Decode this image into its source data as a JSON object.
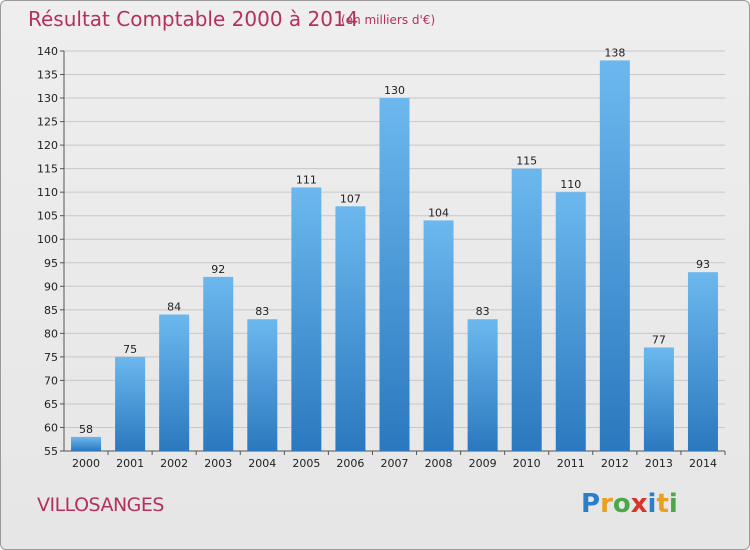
{
  "header": {
    "title": "Résultat Comptable 2000 à 2014",
    "subtitle": "(en milliers d'€)"
  },
  "footer": {
    "commune": "VILLOSANGES",
    "brand_letters": [
      {
        "ch": "P",
        "color": "#2a7fc9"
      },
      {
        "ch": "r",
        "color": "#e8a020"
      },
      {
        "ch": "o",
        "color": "#4aa84a"
      },
      {
        "ch": "x",
        "color": "#d8342c"
      },
      {
        "ch": "i",
        "color": "#2a7fc9"
      },
      {
        "ch": "t",
        "color": "#e8a020"
      },
      {
        "ch": "i",
        "color": "#4aa84a"
      }
    ]
  },
  "colors": {
    "accent": "#b5305e",
    "bar_top": "#6cb8ee",
    "bar_bottom": "#2b78bf"
  },
  "chart_data": {
    "type": "bar",
    "title": "Résultat Comptable 2000 à 2014",
    "subtitle": "(en milliers d'€)",
    "categories": [
      "2000",
      "2001",
      "2002",
      "2003",
      "2004",
      "2005",
      "2006",
      "2007",
      "2008",
      "2009",
      "2010",
      "2011",
      "2012",
      "2013",
      "2014"
    ],
    "values": [
      58,
      75,
      84,
      92,
      83,
      111,
      107,
      130,
      104,
      83,
      115,
      110,
      138,
      77,
      93
    ],
    "ylim": [
      55,
      140
    ],
    "yticks": [
      55,
      60,
      65,
      70,
      75,
      80,
      85,
      90,
      95,
      100,
      105,
      110,
      115,
      120,
      125,
      130,
      135,
      140
    ],
    "grid": true,
    "xlabel": "",
    "ylabel": ""
  }
}
